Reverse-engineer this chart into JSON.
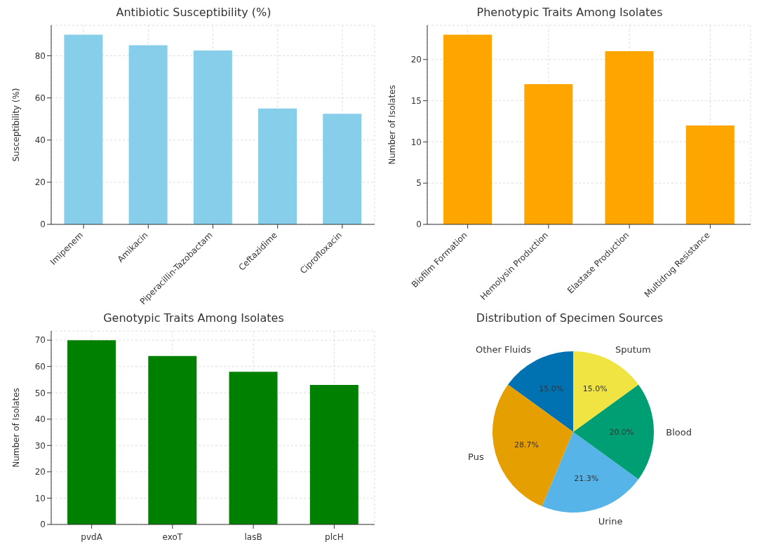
{
  "chart_data": [
    {
      "type": "bar",
      "title": "Antibiotic Susceptibility (%)",
      "ylabel": "Susceptibility (%)",
      "categories": [
        "Imipenem",
        "Amikacin",
        "Piperacillin-Tazobactam",
        "Ceftazidime",
        "Ciprofloxacin"
      ],
      "values": [
        90,
        85,
        82.5,
        55,
        52.5
      ],
      "color": "#87ceeb",
      "ylim": [
        0,
        94.5
      ],
      "yticks": [
        0,
        20,
        40,
        60,
        80
      ],
      "grid": true
    },
    {
      "type": "bar",
      "title": "Phenotypic Traits Among Isolates",
      "ylabel": "Number of Isolates",
      "categories": [
        "Biofilm Formation",
        "Hemolysin Production",
        "Elastase Production",
        "Multidrug Resistance"
      ],
      "values": [
        23,
        17,
        21,
        12
      ],
      "color": "#ffa500",
      "ylim": [
        0,
        24.15
      ],
      "yticks": [
        0,
        5,
        10,
        15,
        20
      ],
      "grid": true
    },
    {
      "type": "bar",
      "title": "Genotypic Traits Among Isolates",
      "ylabel": "Number of Isolates",
      "categories": [
        "pvdA",
        "exoT",
        "lasB",
        "plcH"
      ],
      "values": [
        70,
        64,
        58,
        53
      ],
      "color": "#008000",
      "ylim": [
        0,
        73.5
      ],
      "yticks": [
        0,
        10,
        20,
        30,
        40,
        50,
        60,
        70
      ],
      "grid": true
    },
    {
      "type": "pie",
      "title": "Distribution of Specimen Sources",
      "categories": [
        "Other Fluids",
        "Pus",
        "Urine",
        "Blood",
        "Sputum"
      ],
      "values": [
        15.0,
        28.7,
        21.3,
        20.0,
        15.0
      ],
      "value_labels": [
        "15.0%",
        "28.7%",
        "21.3%",
        "20.0%",
        "15.0%"
      ],
      "colors": [
        "#0072b2",
        "#e69f00",
        "#56b4e9",
        "#009e73",
        "#f0e442"
      ]
    }
  ]
}
